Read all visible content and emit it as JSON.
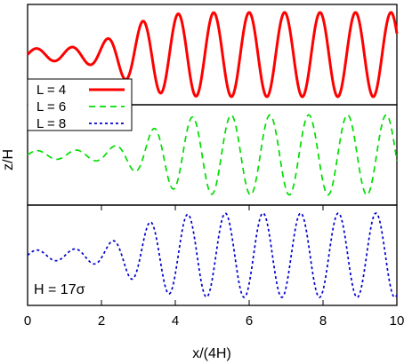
{
  "chart_data": {
    "type": "line",
    "xlabel": "x/(4H)",
    "ylabel": "z/H",
    "xlim": [
      0,
      10
    ],
    "xticks": [
      "0",
      "2",
      "4",
      "6",
      "8",
      "10"
    ],
    "annotation": "H = 17σ",
    "legend_position": "left, at top/middle panel boundary",
    "series": [
      {
        "name": "L = 4",
        "color": "#ff0000",
        "style": "solid",
        "panel": 0,
        "wavelength": 0.96,
        "growth_center": 2.6,
        "start_amplitude": 0.14,
        "full_amplitude": 1.0
      },
      {
        "name": "L = 6",
        "color": "#00dd00",
        "style": "dashed",
        "panel": 1,
        "wavelength": 1.05,
        "growth_center": 3.2,
        "start_amplitude": 0.1,
        "full_amplitude": 0.95
      },
      {
        "name": "L = 8",
        "color": "#0000cc",
        "style": "dotted",
        "panel": 2,
        "wavelength": 1.02,
        "growth_center": 2.8,
        "start_amplitude": 0.12,
        "full_amplitude": 1.0
      }
    ]
  }
}
